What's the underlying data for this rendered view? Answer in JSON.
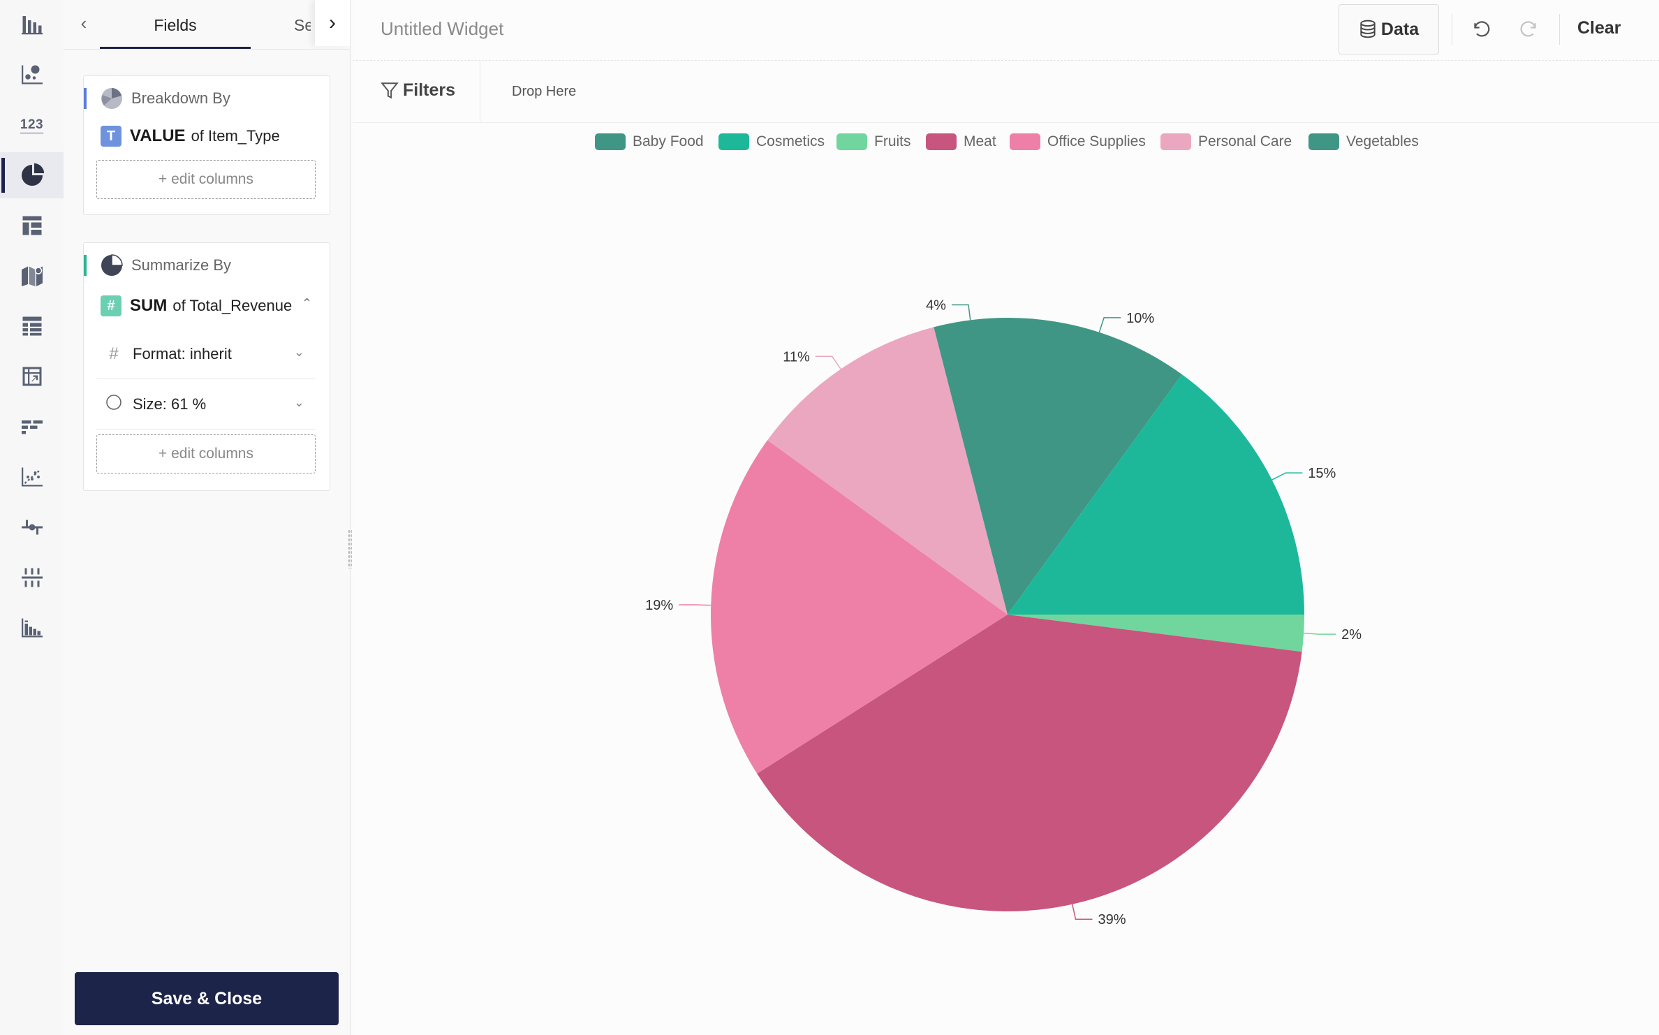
{
  "rail": {
    "items": [
      {
        "icon": "bar-chart-icon",
        "active": false
      },
      {
        "icon": "scatter-chart-icon",
        "active": false
      },
      {
        "icon": "number-kpi-icon",
        "text": "123",
        "active": false
      },
      {
        "icon": "pie-chart-icon",
        "active": true
      },
      {
        "icon": "layout-table-icon",
        "active": false
      },
      {
        "icon": "map-icon",
        "active": false
      },
      {
        "icon": "grid-table-icon",
        "active": false
      },
      {
        "icon": "pivot-table-icon",
        "active": false
      },
      {
        "icon": "funnel-bars-icon",
        "active": false
      },
      {
        "icon": "trend-scatter-icon",
        "active": false
      },
      {
        "icon": "timeline-icon",
        "active": false
      },
      {
        "icon": "sliders-icon",
        "active": false
      },
      {
        "icon": "histogram-icon",
        "active": false
      }
    ]
  },
  "panel": {
    "tabs": {
      "fields": "Fields",
      "settings": "Se"
    },
    "breakdown": {
      "title": "Breakdown By",
      "badge": "T",
      "agg": "VALUE",
      "of": "of Item_Type",
      "edit": "+ edit columns"
    },
    "summarize": {
      "title": "Summarize By",
      "badge": "#",
      "agg": "SUM",
      "of": "of Total_Revenue",
      "format": "Format: inherit",
      "size": "Size: 61 %",
      "edit": "+ edit columns"
    },
    "save_label": "Save & Close"
  },
  "header": {
    "title": "Untitled Widget",
    "data_label": "Data",
    "clear_label": "Clear"
  },
  "filters": {
    "label": "Filters",
    "drop": "Drop Here"
  },
  "colors": {
    "accent": "#1d2449",
    "breakdown_bar": "#5b7fd8",
    "summarize_bar": "#2fb493",
    "text_badge": "#6f92de",
    "num_badge": "#6bcfb1"
  },
  "chart_data": {
    "type": "pie",
    "legend_position": "top",
    "slices": [
      {
        "label": "Baby Food",
        "value": 10,
        "display": "10%",
        "color": "#409685"
      },
      {
        "label": "Cosmetics",
        "value": 15,
        "display": "15%",
        "color": "#1db89a"
      },
      {
        "label": "Fruits",
        "value": 2,
        "display": "2%",
        "color": "#71d69d"
      },
      {
        "label": "Meat",
        "value": 39,
        "display": "39%",
        "color": "#c7557d"
      },
      {
        "label": "Office Supplies",
        "value": 19,
        "display": "19%",
        "color": "#ee80a7"
      },
      {
        "label": "Personal Care",
        "value": 11,
        "display": "11%",
        "color": "#eba7bf"
      },
      {
        "label": "Vegetables",
        "value": 4,
        "display": "4%",
        "color": "#409685"
      }
    ]
  }
}
